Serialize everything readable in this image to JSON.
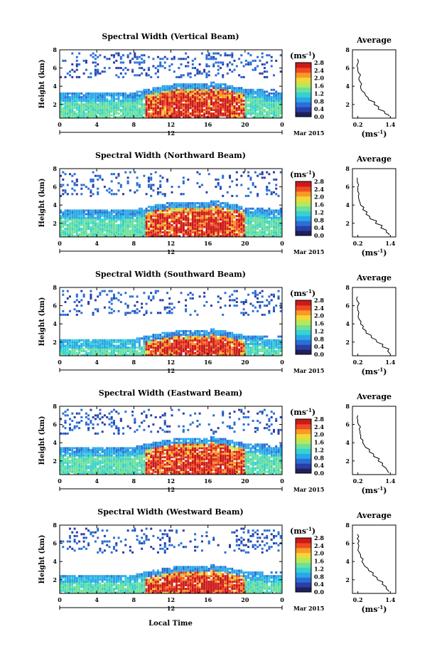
{
  "figure": {
    "xlabel": "Local Time",
    "ylabel": "Height (km)",
    "unit_label": "(ms",
    "unit_exp": "-1",
    "date_label": "Mar 2015",
    "day_label": "12",
    "avg_title": "Average",
    "colorbar_ticks": [
      "0.0",
      "0.4",
      "0.8",
      "1.2",
      "1.6",
      "2.0",
      "2.4",
      "2.8"
    ],
    "colorbar_colors": [
      "#20205a",
      "#2a3ea8",
      "#2b6fd6",
      "#2aa7e8",
      "#34d2d2",
      "#6fe09a",
      "#b8e858",
      "#f0d838",
      "#f89a28",
      "#f04a22",
      "#cc1a1a"
    ]
  },
  "chart_data": [
    {
      "type": "heatmap",
      "title": "Spectral Width (Vertical Beam)",
      "x_ticks": [
        "0",
        "4",
        "8",
        "12",
        "16",
        "20",
        "0"
      ],
      "xlim": [
        0,
        24
      ],
      "y_ticks": [
        "2",
        "4",
        "6",
        "8"
      ],
      "ylim": [
        0.5,
        8
      ],
      "colorbar_range": [
        0.0,
        2.8
      ],
      "profile": {
        "title": "Average",
        "x_ticks": [
          "0.2",
          "1.4"
        ],
        "y_ticks": [
          "2",
          "4",
          "6",
          "8"
        ],
        "height": [
          0.7,
          1.0,
          1.5,
          2.0,
          2.5,
          3.0,
          3.5,
          4.0,
          4.5,
          5.0,
          5.5,
          6.0,
          6.5,
          7.0
        ],
        "width": [
          1.35,
          1.2,
          0.95,
          0.8,
          0.6,
          0.48,
          0.35,
          0.3,
          0.28,
          0.25,
          0.22,
          0.2,
          0.2,
          0.18
        ]
      }
    },
    {
      "type": "heatmap",
      "title": "Spectral Width (Northward Beam)",
      "x_ticks": [
        "0",
        "4",
        "8",
        "12",
        "16",
        "20",
        "0"
      ],
      "xlim": [
        0,
        24
      ],
      "y_ticks": [
        "2",
        "4",
        "6",
        "8"
      ],
      "ylim": [
        0.5,
        8
      ],
      "colorbar_range": [
        0.0,
        2.8
      ],
      "profile": {
        "title": "Average",
        "x_ticks": [
          "0.2",
          "1.4"
        ],
        "y_ticks": [
          "2",
          "4",
          "6",
          "8"
        ],
        "height": [
          0.7,
          1.0,
          1.5,
          2.0,
          2.5,
          3.0,
          3.5,
          4.0,
          4.5,
          5.0,
          5.5,
          6.0,
          6.5,
          7.0
        ],
        "width": [
          1.35,
          1.25,
          1.05,
          0.85,
          0.65,
          0.5,
          0.38,
          0.3,
          0.25,
          0.22,
          0.2,
          0.2,
          0.18,
          0.18
        ]
      }
    },
    {
      "type": "heatmap",
      "title": "Spectral Width (Southward Beam)",
      "x_ticks": [
        "0",
        "4",
        "8",
        "12",
        "16",
        "20",
        "0"
      ],
      "xlim": [
        0,
        24
      ],
      "y_ticks": [
        "2",
        "4",
        "6",
        "8"
      ],
      "ylim": [
        0.5,
        8
      ],
      "colorbar_range": [
        0.0,
        2.8
      ],
      "profile": {
        "title": "Average",
        "x_ticks": [
          "0.2",
          "1.4"
        ],
        "y_ticks": [
          "2",
          "4",
          "6",
          "8"
        ],
        "height": [
          0.7,
          1.0,
          1.5,
          2.0,
          2.5,
          3.0,
          3.5,
          4.0,
          4.5,
          5.0,
          5.5,
          6.0,
          6.5,
          7.0
        ],
        "width": [
          1.38,
          1.3,
          1.1,
          0.9,
          0.7,
          0.5,
          0.38,
          0.3,
          0.25,
          0.22,
          0.2,
          0.2,
          0.18,
          0.18
        ]
      }
    },
    {
      "type": "heatmap",
      "title": "Spectral Width (Eastward Beam)",
      "x_ticks": [
        "0",
        "4",
        "8",
        "12",
        "16",
        "20",
        "0"
      ],
      "xlim": [
        0,
        24
      ],
      "y_ticks": [
        "2",
        "4",
        "6",
        "8"
      ],
      "ylim": [
        0.5,
        8
      ],
      "colorbar_range": [
        0.0,
        2.8
      ],
      "profile": {
        "title": "Average",
        "x_ticks": [
          "0.2",
          "1.4"
        ],
        "y_ticks": [
          "2",
          "4",
          "6",
          "8"
        ],
        "height": [
          0.7,
          1.0,
          1.5,
          2.0,
          2.5,
          3.0,
          3.5,
          4.0,
          4.5,
          5.0,
          5.5,
          6.0,
          6.5,
          7.0
        ],
        "width": [
          1.35,
          1.28,
          1.1,
          0.95,
          0.78,
          0.62,
          0.48,
          0.38,
          0.3,
          0.28,
          0.25,
          0.22,
          0.2,
          0.2
        ]
      }
    },
    {
      "type": "heatmap",
      "title": "Spectral Width (Westward Beam)",
      "x_ticks": [
        "0",
        "4",
        "8",
        "12",
        "16",
        "20",
        "0"
      ],
      "xlim": [
        0,
        24
      ],
      "y_ticks": [
        "2",
        "4",
        "6",
        "8"
      ],
      "ylim": [
        0.5,
        8
      ],
      "colorbar_range": [
        0.0,
        2.8
      ],
      "profile": {
        "title": "Average",
        "x_ticks": [
          "0.2",
          "1.4"
        ],
        "y_ticks": [
          "2",
          "4",
          "6",
          "8"
        ],
        "height": [
          0.7,
          1.0,
          1.5,
          2.0,
          2.5,
          3.0,
          3.5,
          4.0,
          4.5,
          5.0,
          5.5,
          6.0,
          6.5,
          7.0
        ],
        "width": [
          1.35,
          1.25,
          1.1,
          0.92,
          0.75,
          0.6,
          0.45,
          0.35,
          0.3,
          0.25,
          0.22,
          0.2,
          0.18,
          0.18
        ]
      }
    }
  ]
}
